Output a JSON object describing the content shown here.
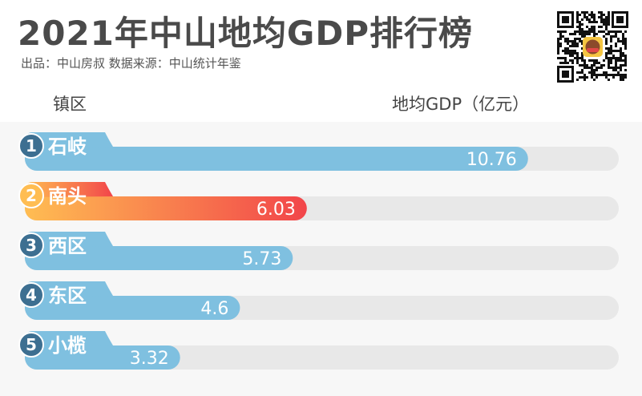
{
  "header": {
    "title": "2021年中山地均GDP排行榜",
    "subtitle": "出品：中山房叔 数据来源：中山统计年鉴"
  },
  "table": {
    "col_town": "镇区",
    "col_value": "地均GDP（亿元）"
  },
  "colors": {
    "blue": "#7fc0e0",
    "blue_rank": "#3d6f91",
    "track": "#e8e8e8",
    "gold": "#ffbd52",
    "red": "#f2454a"
  },
  "chart_data": {
    "type": "bar",
    "orientation": "horizontal",
    "title": "2021年中山地均GDP排行榜",
    "xlabel": "地均GDP（亿元）",
    "ylabel": "镇区",
    "xlim": [
      0,
      12.7
    ],
    "categories": [
      "石岐",
      "南头",
      "西区",
      "东区",
      "小榄"
    ],
    "ranks": [
      "1",
      "2",
      "3",
      "4",
      "5"
    ],
    "values": [
      10.76,
      6.03,
      5.73,
      4.6,
      3.32
    ],
    "value_labels": [
      "10.76",
      "6.03",
      "5.73",
      "4.6",
      "3.32"
    ],
    "highlight": [
      "南头"
    ]
  }
}
